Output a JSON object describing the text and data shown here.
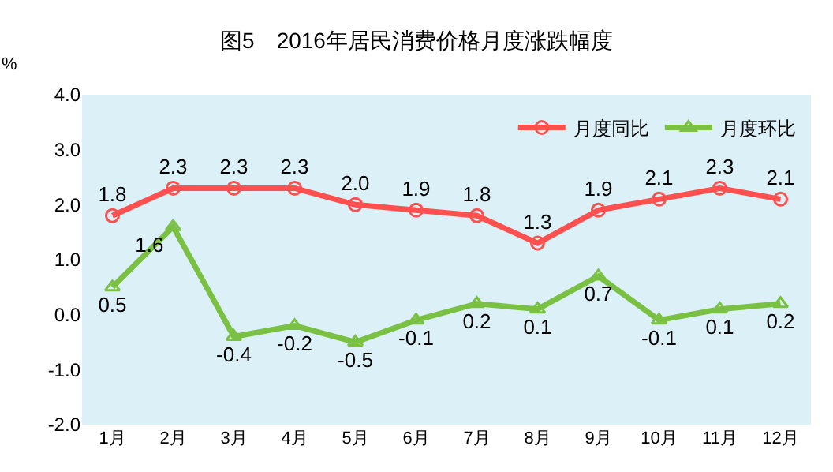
{
  "chart_data": {
    "type": "line",
    "title": "图5　2016年居民消费价格月度涨跌幅度",
    "ylabel": "%",
    "categories": [
      "1月",
      "2月",
      "3月",
      "4月",
      "5月",
      "6月",
      "7月",
      "8月",
      "9月",
      "10月",
      "11月",
      "12月"
    ],
    "series": [
      {
        "name": "月度同比",
        "color": "#ff5050",
        "marker": "circle",
        "values": [
          1.8,
          2.3,
          2.3,
          2.3,
          2.0,
          1.9,
          1.8,
          1.3,
          1.9,
          2.1,
          2.3,
          2.1
        ],
        "value_labels": [
          "1.8",
          "2.3",
          "2.3",
          "2.3",
          "2.0",
          "1.9",
          "1.8",
          "1.3",
          "1.9",
          "2.1",
          "2.3",
          "2.1"
        ]
      },
      {
        "name": "月度环比",
        "color": "#7ac143",
        "marker": "triangle",
        "values": [
          0.5,
          1.6,
          -0.4,
          -0.2,
          -0.5,
          -0.1,
          0.2,
          0.1,
          0.7,
          -0.1,
          0.1,
          0.2
        ],
        "value_labels": [
          "0.5",
          "1.6",
          "-0.4",
          "-0.2",
          "-0.5",
          "-0.1",
          "0.2",
          "0.1",
          "0.7",
          "-0.1",
          "0.1",
          "0.2"
        ]
      }
    ],
    "ylim": [
      -2,
      4
    ],
    "yticks": [
      {
        "value": -2,
        "label": "-2.0"
      },
      {
        "value": -1,
        "label": "-1.0"
      },
      {
        "value": 0,
        "label": "0.0"
      },
      {
        "value": 1,
        "label": "1.0"
      },
      {
        "value": 2,
        "label": "2.0"
      },
      {
        "value": 3,
        "label": "3.0"
      },
      {
        "value": 4,
        "label": "4.0"
      }
    ],
    "legend": "top right",
    "line_style": "solid",
    "grid": false
  }
}
